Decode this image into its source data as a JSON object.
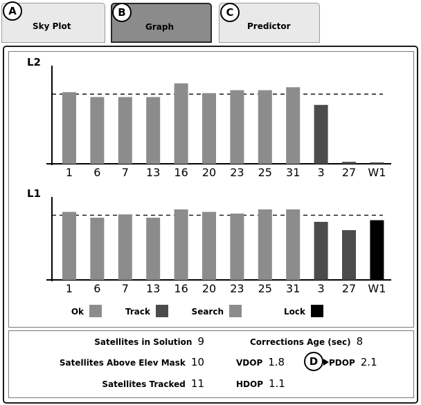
{
  "tabs": [
    {
      "badge": "A",
      "label": "Sky Plot",
      "active": false
    },
    {
      "badge": "B",
      "label": "Graph",
      "active": true
    },
    {
      "badge": "C",
      "label": "Predictor",
      "active": false
    }
  ],
  "chart_data": [
    {
      "type": "bar",
      "title": "L2",
      "categories": [
        "1",
        "6",
        "7",
        "13",
        "16",
        "20",
        "23",
        "25",
        "31",
        "3",
        "27",
        "W1"
      ],
      "values": [
        0.73,
        0.68,
        0.68,
        0.68,
        0.82,
        0.72,
        0.75,
        0.75,
        0.78,
        0.6,
        0.02,
        0.01
      ],
      "status": [
        "ok",
        "ok",
        "ok",
        "ok",
        "ok",
        "ok",
        "ok",
        "ok",
        "ok",
        "track",
        "track",
        "track"
      ],
      "threshold": 0.71,
      "ylim": [
        0,
        1
      ]
    },
    {
      "type": "bar",
      "title": "L1",
      "categories": [
        "1",
        "6",
        "7",
        "13",
        "16",
        "20",
        "23",
        "25",
        "31",
        "3",
        "27",
        "W1"
      ],
      "values": [
        0.82,
        0.75,
        0.79,
        0.75,
        0.85,
        0.82,
        0.8,
        0.85,
        0.85,
        0.7,
        0.6,
        0.72
      ],
      "status": [
        "ok",
        "ok",
        "ok",
        "ok",
        "ok",
        "ok",
        "ok",
        "ok",
        "ok",
        "track",
        "track",
        "lock"
      ],
      "threshold": 0.78,
      "ylim": [
        0,
        1
      ]
    }
  ],
  "legend": [
    {
      "label": "Ok",
      "status": "ok"
    },
    {
      "label": "Track",
      "status": "track"
    },
    {
      "label": "Search",
      "status": "search"
    },
    {
      "label": "Lock",
      "status": "lock"
    }
  ],
  "colors": {
    "ok": "#8c8c8c",
    "track": "#4b4b4b",
    "search": "#8c8c8c",
    "lock": "#000000"
  },
  "stats": {
    "sat_in_solution_label": "Satellites in Solution",
    "sat_in_solution": "9",
    "sat_above_mask_label": "Satellites Above Elev Mask",
    "sat_above_mask": "10",
    "sat_tracked_label": "Satellites Tracked",
    "sat_tracked": "11",
    "corr_age_label": "Corrections Age (sec)",
    "corr_age": "8",
    "vdop_label": "VDOP",
    "vdop": "1.8",
    "pdop_label": "PDOP",
    "pdop": "2.1",
    "hdop_label": "HDOP",
    "hdop": "1.1",
    "callout": "D"
  }
}
